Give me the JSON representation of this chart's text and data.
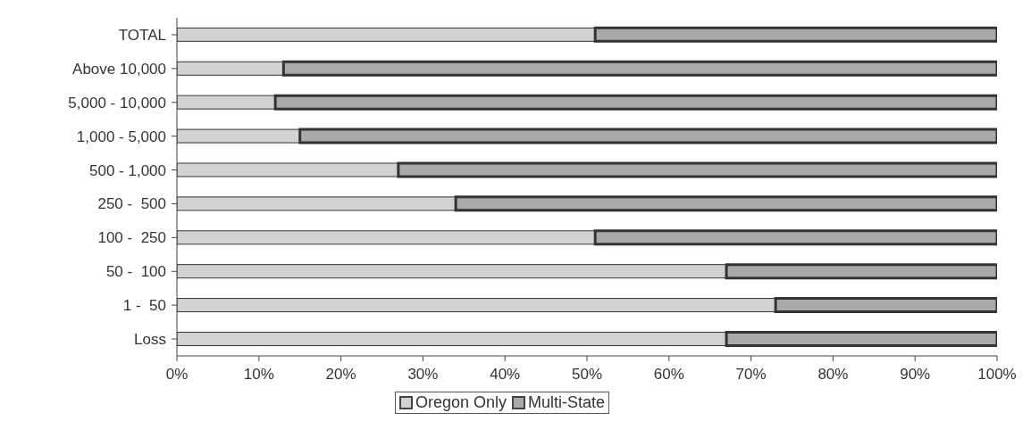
{
  "chart_data": {
    "type": "bar",
    "orientation": "horizontal",
    "stacked": true,
    "categories": [
      "TOTAL",
      "Above 10,000",
      "5,000 - 10,000",
      "1,000 - 5,000",
      "500 - 1,000",
      "250 -  500",
      "100 -  250",
      "50 -  100",
      "1 -  50",
      "Loss"
    ],
    "series": [
      {
        "name": "Oregon Only",
        "color": "#d2d2d2",
        "values": [
          51,
          13,
          12,
          15,
          27,
          34,
          51,
          67,
          73,
          67
        ]
      },
      {
        "name": "Multi-State",
        "color": "#a9a9a9",
        "values": [
          49,
          87,
          88,
          85,
          73,
          66,
          49,
          33,
          27,
          33
        ]
      }
    ],
    "xlim": [
      0,
      100
    ],
    "xticks": [
      {
        "value": 0,
        "label": "0%"
      },
      {
        "value": 10,
        "label": "10%"
      },
      {
        "value": 20,
        "label": "20%"
      },
      {
        "value": 30,
        "label": "30%"
      },
      {
        "value": 40,
        "label": "40%"
      },
      {
        "value": 50,
        "label": "50%"
      },
      {
        "value": 60,
        "label": "60%"
      },
      {
        "value": 70,
        "label": "70%"
      },
      {
        "value": 80,
        "label": "80%"
      },
      {
        "value": 90,
        "label": "90%"
      },
      {
        "value": 100,
        "label": "100%"
      }
    ],
    "legend": "bottom"
  }
}
